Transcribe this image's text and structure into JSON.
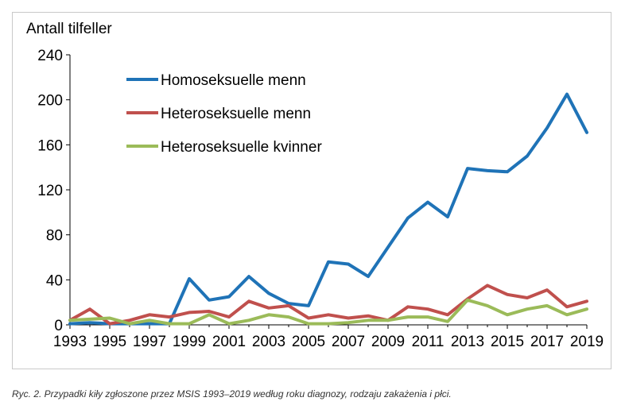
{
  "caption": "Ryc. 2. Przypadki kiły zgłoszone przez MSIS 1993–2019 według roku diagnozy, rodzaju zakażenia i płci.",
  "chart_data": {
    "type": "line",
    "ylabel": "Antall tilfeller",
    "xlabel": "",
    "ylim": [
      0,
      240
    ],
    "yticks": [
      0,
      40,
      80,
      120,
      160,
      200,
      240
    ],
    "x": [
      1993,
      1994,
      1995,
      1996,
      1997,
      1998,
      1999,
      2000,
      2001,
      2002,
      2003,
      2004,
      2005,
      2006,
      2007,
      2008,
      2009,
      2010,
      2011,
      2012,
      2013,
      2014,
      2015,
      2016,
      2017,
      2018,
      2019
    ],
    "xtick_labels": [
      "1993",
      "1995",
      "1997",
      "1999",
      "2001",
      "2003",
      "2005",
      "2007",
      "2009",
      "2011",
      "2013",
      "2015",
      "2017",
      "2019"
    ],
    "grid": false,
    "legend": "top-left",
    "series": [
      {
        "name": "Homoseksuelle menn",
        "color": "#1f73b7",
        "values": [
          1,
          2,
          1,
          1,
          1,
          1,
          41,
          22,
          25,
          43,
          28,
          19,
          17,
          56,
          54,
          43,
          69,
          95,
          109,
          96,
          139,
          137,
          136,
          150,
          175,
          205,
          171
        ]
      },
      {
        "name": "Heteroseksuelle menn",
        "color": "#c0504d",
        "values": [
          4,
          14,
          1,
          4,
          9,
          7,
          11,
          12,
          7,
          21,
          15,
          17,
          6,
          9,
          6,
          8,
          4,
          16,
          14,
          9,
          23,
          35,
          27,
          24,
          31,
          16,
          21
        ]
      },
      {
        "name": "Heteroseksuelle kvinner",
        "color": "#9bbb59",
        "values": [
          4,
          5,
          6,
          1,
          4,
          1,
          1,
          9,
          1,
          4,
          9,
          7,
          1,
          1,
          2,
          4,
          4,
          7,
          7,
          3,
          22,
          17,
          9,
          14,
          17,
          9,
          14
        ]
      }
    ]
  }
}
